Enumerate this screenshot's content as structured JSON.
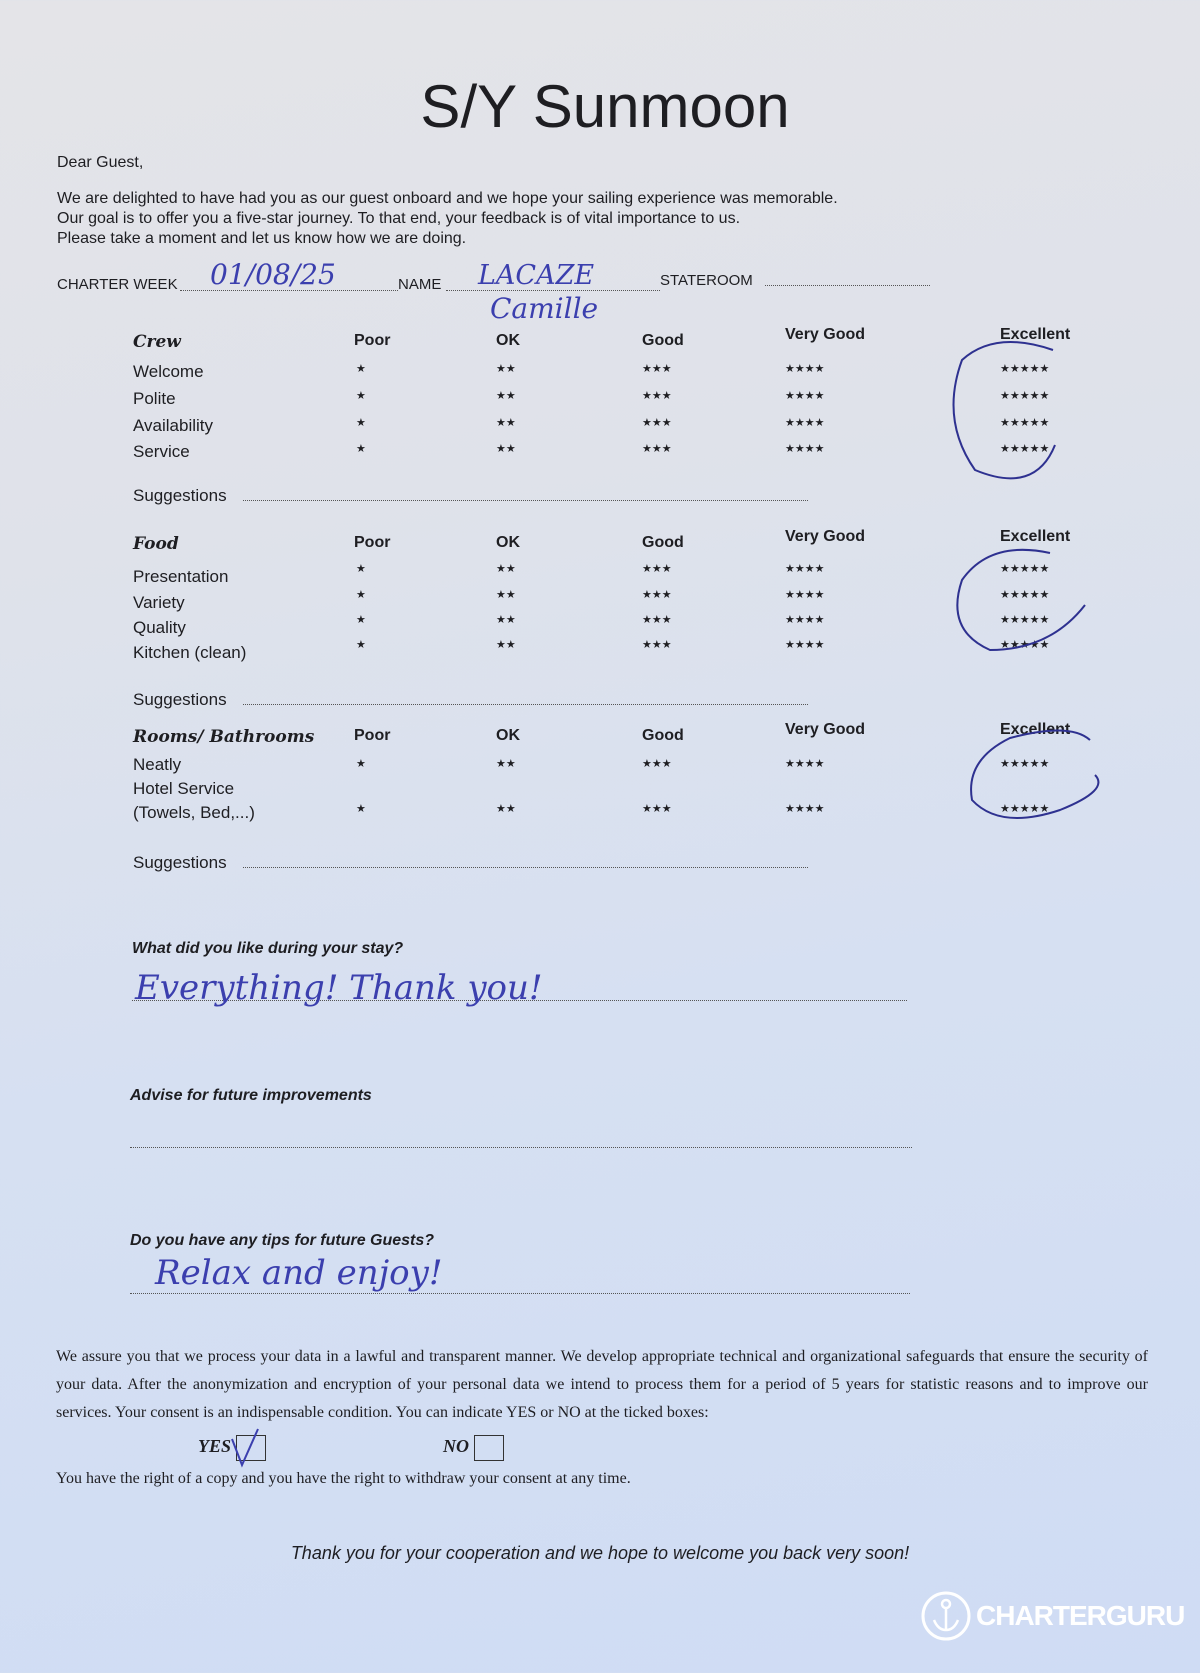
{
  "title": "S/Y Sunmoon",
  "greeting": "Dear Guest,",
  "intro": [
    "We are delighted to have had you as our guest onboard and we hope your sailing experience was memorable.",
    "Our goal is to offer you a five-star journey. To that end, your feedback is of vital importance to us.",
    "Please take a moment and let us know how we are doing."
  ],
  "fields": {
    "charter_week_label": "CHARTER WEEK",
    "charter_week_value": "01/08/25",
    "name_label": "NAME",
    "name_value": "LACAZE",
    "name_value_2": "Camille",
    "stateroom_label": "STATEROOM",
    "stateroom_value": ""
  },
  "rating_columns": [
    {
      "label": "Poor",
      "stars": "★"
    },
    {
      "label": "OK",
      "stars": "★★"
    },
    {
      "label": "Good",
      "stars": "★★★"
    },
    {
      "label": "Very Good",
      "stars": "★★★★"
    },
    {
      "label": "Excellent",
      "stars": "★★★★★"
    }
  ],
  "sections": [
    {
      "title": "Crew",
      "items": [
        {
          "label": "Welcome",
          "selected": "Excellent"
        },
        {
          "label": "Polite",
          "selected": "Excellent"
        },
        {
          "label": "Availability",
          "selected": "Excellent"
        },
        {
          "label": "Service",
          "selected": "Excellent"
        }
      ],
      "suggestions_label": "Suggestions",
      "suggestions_value": ""
    },
    {
      "title": "Food",
      "items": [
        {
          "label": "Presentation",
          "selected": "Excellent"
        },
        {
          "label": "Variety",
          "selected": "Excellent"
        },
        {
          "label": "Quality",
          "selected": "Excellent"
        },
        {
          "label": "Kitchen (clean)",
          "selected": "Excellent"
        }
      ],
      "suggestions_label": "Suggestions",
      "suggestions_value": ""
    },
    {
      "title": "Rooms/ Bathrooms",
      "items": [
        {
          "label": "Neatly",
          "selected": "Excellent"
        },
        {
          "label": "Hotel Service",
          "label2": "(Towels, Bed,...)",
          "selected": "Excellent"
        }
      ],
      "suggestions_label": "Suggestions",
      "suggestions_value": ""
    }
  ],
  "questions": [
    {
      "label": "What did you like during your stay?",
      "answer": "Everything! Thank you!"
    },
    {
      "label": "Advise for future improvements",
      "answer": ""
    },
    {
      "label": "Do you have any tips for future Guests?",
      "answer": "Relax and enjoy!"
    }
  ],
  "legal": {
    "text": "We assure you that we process your data in a lawful and transparent manner. We develop appropriate technical and organizational safeguards that ensure the security of your data. After the anonymization and encryption of your personal data we intend to process them for a period of 5 years for statistic reasons and to improve our services. Your consent is an indispensable condition. You can indicate YES or NO at the ticked boxes:",
    "yes_label": "YES",
    "yes_checked": true,
    "no_label": "NO",
    "no_checked": false,
    "rights": "You have the right of a copy and you have the right to withdraw your consent at any time."
  },
  "closing": "Thank you for your cooperation and we hope to welcome you back very soon!",
  "watermark": "CHARTERGURU",
  "colors": {
    "ink": "#3b3fae",
    "text": "#1e1e22"
  }
}
